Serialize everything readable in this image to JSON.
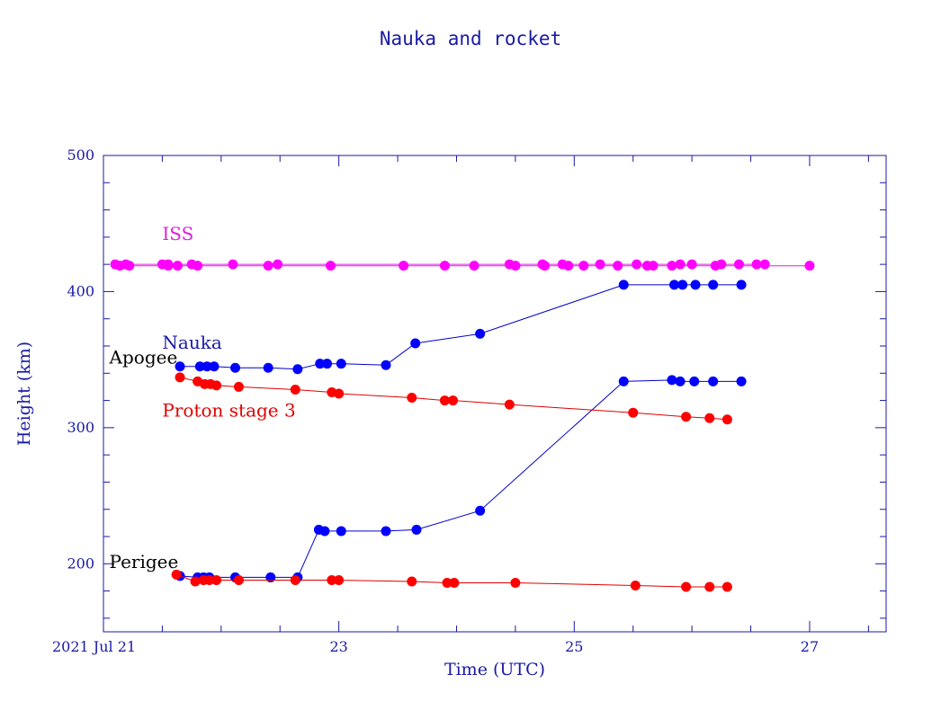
{
  "chart_data": {
    "type": "line",
    "title": "Nauka and rocket",
    "xlabel": "Time (UTC)",
    "ylabel": "Height (km)",
    "xlim": [
      21.0,
      27.65
    ],
    "ylim": [
      150,
      500
    ],
    "x_ticks": [
      {
        "value": 21,
        "label": "2021 Jul 21"
      },
      {
        "value": 23,
        "label": "23"
      },
      {
        "value": 25,
        "label": "25"
      },
      {
        "value": 27,
        "label": "27"
      }
    ],
    "y_ticks": [
      {
        "value": 200,
        "label": "200"
      },
      {
        "value": 300,
        "label": "300"
      },
      {
        "value": 400,
        "label": "400"
      },
      {
        "value": 500,
        "label": "500"
      }
    ],
    "annotations": [
      {
        "id": "iss",
        "text": "ISS",
        "color": "#e020e0",
        "x": 21.5,
        "y": 438
      },
      {
        "id": "nauka",
        "text": "Nauka",
        "color": "#1a1aa6",
        "x": 21.5,
        "y": 358
      },
      {
        "id": "apogee",
        "text": "Apogee",
        "color": "#000000",
        "x": 21.05,
        "y": 347
      },
      {
        "id": "proton",
        "text": "Proton stage 3",
        "color": "#e00000",
        "x": 21.5,
        "y": 308
      },
      {
        "id": "perigee",
        "text": "Perigee",
        "color": "#000000",
        "x": 21.05,
        "y": 197
      }
    ],
    "series": [
      {
        "id": "iss-a",
        "color": "#ff00ff",
        "line_color": "#e020e0",
        "x": [
          21.1,
          21.19,
          21.5,
          21.55,
          21.75,
          22.1,
          22.48,
          24.45,
          24.73,
          24.9,
          25.22,
          25.53,
          25.9,
          26.0,
          26.25,
          26.4,
          26.55,
          26.62
        ],
        "y": [
          420,
          420,
          420,
          420,
          420,
          420,
          420,
          420,
          420,
          420,
          420,
          420,
          420,
          420,
          420,
          420,
          420,
          420
        ]
      },
      {
        "id": "iss-b",
        "color": "#ff00ff",
        "line_color": "#e020e0",
        "x": [
          21.14,
          21.22,
          21.55,
          21.63,
          21.8,
          22.4,
          22.93,
          23.55,
          23.9,
          24.15,
          24.5,
          24.75,
          24.95,
          25.08,
          25.37,
          25.62,
          25.67,
          25.83,
          26.2,
          27.0
        ],
        "y": [
          419,
          419,
          419,
          419,
          419,
          419,
          419,
          419,
          419,
          419,
          419,
          419,
          419,
          419,
          419,
          419,
          419,
          419,
          419,
          419
        ]
      },
      {
        "id": "nauka-apogee",
        "color": "#0000ff",
        "line_color": "#0000cc",
        "x": [
          21.65,
          21.82,
          21.88,
          21.94,
          22.12,
          22.4,
          22.65,
          22.84,
          22.9,
          23.02,
          23.4,
          23.65,
          24.2,
          25.42,
          25.85,
          25.92,
          26.03,
          26.18,
          26.42
        ],
        "y": [
          345,
          345,
          345,
          345,
          344,
          344,
          343,
          347,
          347,
          347,
          346,
          362,
          369,
          405,
          405,
          405,
          405,
          405,
          405
        ]
      },
      {
        "id": "nauka-perigee",
        "color": "#0000ff",
        "line_color": "#0000cc",
        "x": [
          21.65,
          21.8,
          21.85,
          21.9,
          22.12,
          22.42,
          22.65,
          22.83,
          22.88,
          23.02,
          23.4,
          23.66,
          24.2,
          25.42,
          25.83,
          25.9,
          26.02,
          26.18,
          26.42
        ],
        "y": [
          191,
          190,
          190,
          190,
          190,
          190,
          190,
          225,
          224,
          224,
          224,
          225,
          239,
          334,
          335,
          334,
          334,
          334,
          334
        ]
      },
      {
        "id": "proton-apogee",
        "color": "#ff0000",
        "line_color": "#e00000",
        "x": [
          21.65,
          21.8,
          21.86,
          21.91,
          21.96,
          22.15,
          22.63,
          22.94,
          23.0,
          23.62,
          23.9,
          23.97,
          24.45,
          25.5,
          25.95,
          26.15,
          26.3
        ],
        "y": [
          337,
          334,
          332,
          332,
          331,
          330,
          328,
          326,
          325,
          322,
          320,
          320,
          317,
          311,
          308,
          307,
          306
        ]
      },
      {
        "id": "proton-perigee",
        "color": "#ff0000",
        "line_color": "#e00000",
        "x": [
          21.62,
          21.78,
          21.85,
          21.9,
          21.96,
          22.15,
          22.63,
          22.94,
          23.0,
          23.62,
          23.92,
          23.98,
          24.5,
          25.52,
          25.95,
          26.15,
          26.3
        ],
        "y": [
          192,
          187,
          188,
          188,
          188,
          188,
          188,
          188,
          188,
          187,
          186,
          186,
          186,
          184,
          183,
          183,
          183
        ]
      }
    ]
  }
}
